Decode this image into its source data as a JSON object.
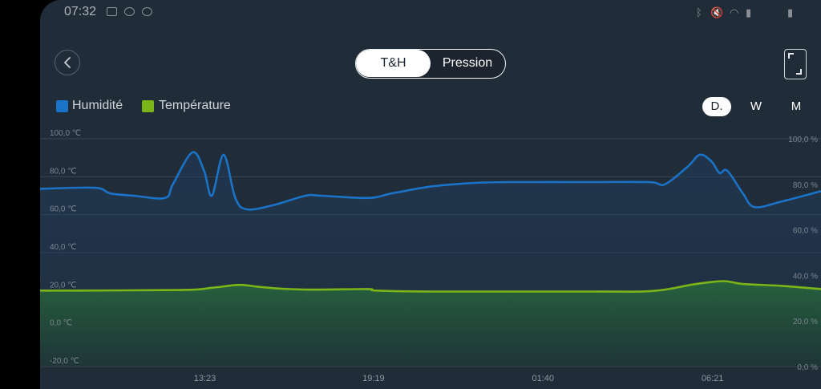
{
  "status": {
    "time": "07:32"
  },
  "nav": {
    "tabs": [
      {
        "label": "T&H",
        "selected": true
      },
      {
        "label": "Pression",
        "selected": false
      }
    ]
  },
  "legend": [
    {
      "label": "Humidité",
      "color": "#1a73c6"
    },
    {
      "label": "Température",
      "color": "#7cb518"
    }
  ],
  "ranges": [
    {
      "label": "D.",
      "selected": true
    },
    {
      "label": "W"
    },
    {
      "label": "M"
    }
  ],
  "chart_data": {
    "type": "area",
    "left_axis": {
      "ticks": [
        "100,0 ℃",
        "80,0 ℃",
        "60,0 ℃",
        "40,0 ℃",
        "20,0 ℃",
        "0,0 ℃",
        "-20,0 ℃"
      ],
      "range": [
        -20,
        100
      ]
    },
    "right_axis": {
      "ticks": [
        "100,0 %",
        "80,0 %",
        "60,0 %",
        "40,0 %",
        "20,0 %",
        "0,0 %"
      ],
      "range": [
        0,
        100
      ]
    },
    "x_ticks": [
      {
        "label": "13:23",
        "t": 0.211
      },
      {
        "label": "19:19",
        "t": 0.427
      },
      {
        "label": "01:40",
        "t": 0.644
      },
      {
        "label": "06:21",
        "t": 0.861
      }
    ],
    "grid": true,
    "series": [
      {
        "name": "Humidité",
        "axis": "right",
        "color": "#1a73c6",
        "points": [
          [
            0,
            78
          ],
          [
            0.07,
            78.5
          ],
          [
            0.09,
            76
          ],
          [
            0.12,
            75
          ],
          [
            0.16,
            74
          ],
          [
            0.17,
            80
          ],
          [
            0.195,
            94
          ],
          [
            0.21,
            86
          ],
          [
            0.22,
            75
          ],
          [
            0.235,
            93
          ],
          [
            0.25,
            74
          ],
          [
            0.265,
            69
          ],
          [
            0.3,
            71
          ],
          [
            0.34,
            75
          ],
          [
            0.36,
            75
          ],
          [
            0.42,
            74
          ],
          [
            0.45,
            76
          ],
          [
            0.5,
            79
          ],
          [
            0.55,
            80.5
          ],
          [
            0.6,
            81
          ],
          [
            0.7,
            81
          ],
          [
            0.78,
            81
          ],
          [
            0.8,
            80
          ],
          [
            0.83,
            88
          ],
          [
            0.845,
            93
          ],
          [
            0.86,
            90
          ],
          [
            0.87,
            85
          ],
          [
            0.88,
            86
          ],
          [
            0.9,
            76
          ],
          [
            0.915,
            70
          ],
          [
            0.95,
            72.5
          ],
          [
            1.0,
            77
          ]
        ]
      },
      {
        "name": "Température",
        "axis": "left",
        "color": "#7cb518",
        "points": [
          [
            0,
            20
          ],
          [
            0.18,
            20.3
          ],
          [
            0.22,
            21.5
          ],
          [
            0.255,
            23
          ],
          [
            0.28,
            22
          ],
          [
            0.31,
            21
          ],
          [
            0.35,
            20.5
          ],
          [
            0.42,
            20.8
          ],
          [
            0.43,
            20
          ],
          [
            0.5,
            19.5
          ],
          [
            0.6,
            19.5
          ],
          [
            0.72,
            19.5
          ],
          [
            0.77,
            19.5
          ],
          [
            0.8,
            20.5
          ],
          [
            0.84,
            23.5
          ],
          [
            0.875,
            25
          ],
          [
            0.9,
            23.5
          ],
          [
            0.95,
            22.5
          ],
          [
            1.0,
            20.8
          ]
        ]
      }
    ]
  }
}
